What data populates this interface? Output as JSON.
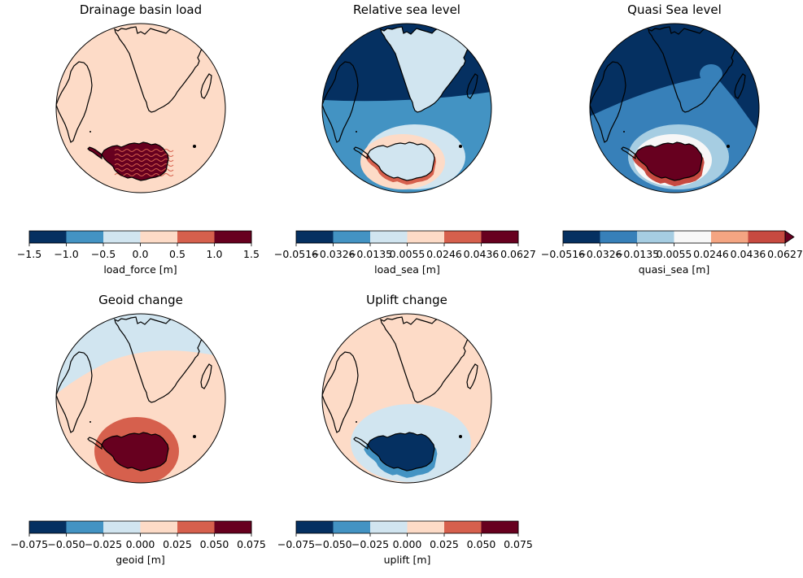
{
  "chart_data": [
    {
      "type": "map",
      "title": "Drainage basin load",
      "projection": "orthographic",
      "center": "southern Indian Ocean",
      "pattern": "basin",
      "fields": {
        "ocean": "0.0 to 0.5",
        "antarctica": "1.0 to 1.5 (with 0.5 to 1.0 contours)"
      },
      "colorbar": {
        "label": "load_force [m]",
        "ticks": [
          "−1.5",
          "−1.0",
          "−0.5",
          "0.0",
          "0.5",
          "1.0",
          "1.5"
        ],
        "levels": [
          -1.5,
          -1.0,
          -0.5,
          0.0,
          0.5,
          1.0,
          1.5
        ],
        "colors": [
          "#053061",
          "#4393c3",
          "#d1e5f0",
          "#fddbc7",
          "#d6604d",
          "#67001f"
        ],
        "extend": "neither"
      }
    },
    {
      "type": "map",
      "title": "Relative sea level",
      "projection": "orthographic",
      "pattern": "rsl",
      "colorbar": {
        "label": "load_sea [m]",
        "ticks": [
          "−0.0516",
          "−0.0326",
          "−0.0135",
          "0.0055",
          "0.0246",
          "0.0436",
          "0.0627"
        ],
        "levels": [
          -0.0516,
          -0.0326,
          -0.0135,
          0.0055,
          0.0246,
          0.0436,
          0.0627
        ],
        "colors": [
          "#053061",
          "#4393c3",
          "#d1e5f0",
          "#fddbc7",
          "#d6604d",
          "#67001f"
        ],
        "extend": "neither"
      }
    },
    {
      "type": "map",
      "title": "Quasi Sea level",
      "projection": "orthographic",
      "pattern": "quasi",
      "colorbar": {
        "label": "quasi_sea [m]",
        "ticks": [
          "−0.0516",
          "−0.0326",
          "−0.0135",
          "0.0055",
          "0.0246",
          "0.0436",
          "0.0627"
        ],
        "levels": [
          -0.0516,
          -0.0326,
          -0.0135,
          0.0055,
          0.0246,
          0.0436,
          0.0627
        ],
        "colors": [
          "#053061",
          "#3780b9",
          "#a6cde2",
          "#f7f7f7",
          "#f4a582",
          "#c74a40"
        ],
        "extend_color": "#67001f",
        "extend": "max"
      }
    },
    {
      "type": "map",
      "title": "Geoid change",
      "projection": "orthographic",
      "pattern": "geoid",
      "colorbar": {
        "label": "geoid [m]",
        "ticks": [
          "−0.075",
          "−0.050",
          "−0.025",
          "0.000",
          "0.025",
          "0.050",
          "0.075"
        ],
        "levels": [
          -0.075,
          -0.05,
          -0.025,
          0.0,
          0.025,
          0.05,
          0.075
        ],
        "colors": [
          "#053061",
          "#4393c3",
          "#d1e5f0",
          "#fddbc7",
          "#d6604d",
          "#67001f"
        ],
        "extend": "neither"
      }
    },
    {
      "type": "map",
      "title": "Uplift change",
      "projection": "orthographic",
      "pattern": "uplift",
      "colorbar": {
        "label": "uplift [m]",
        "ticks": [
          "−0.075",
          "−0.050",
          "−0.025",
          "0.000",
          "0.025",
          "0.050",
          "0.075"
        ],
        "levels": [
          -0.075,
          -0.05,
          -0.025,
          0.0,
          0.025,
          0.05,
          0.075
        ],
        "colors": [
          "#053061",
          "#4393c3",
          "#d1e5f0",
          "#fddbc7",
          "#d6604d",
          "#67001f"
        ],
        "extend": "neither"
      }
    }
  ]
}
